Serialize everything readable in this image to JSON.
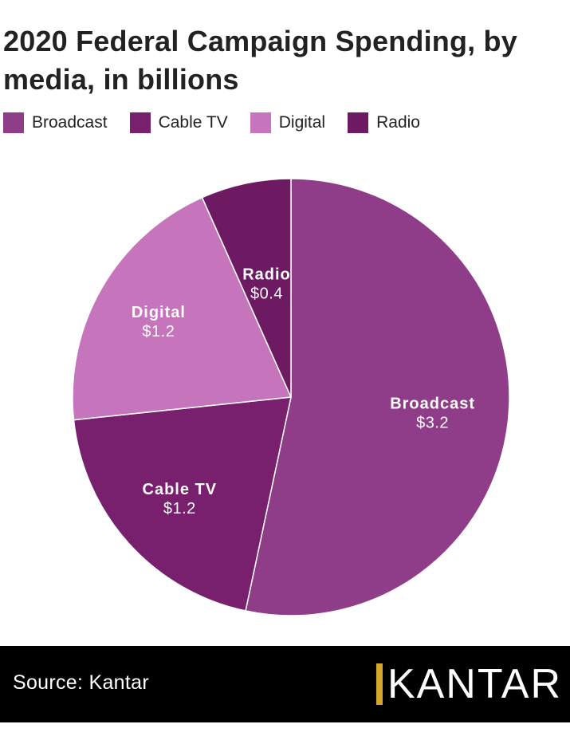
{
  "title": "2020 Federal Campaign Spending, by media, in billions",
  "colors": {
    "broadcast": "#8f3d88",
    "cable_tv": "#781f6e",
    "digital": "#c675bd",
    "radio": "#6e1a62"
  },
  "legend": {
    "items": [
      {
        "label": "Broadcast",
        "color": "#8f3d88"
      },
      {
        "label": "Cable TV",
        "color": "#781f6e"
      },
      {
        "label": "Digital",
        "color": "#c675bd"
      },
      {
        "label": "Radio",
        "color": "#6e1a62"
      }
    ]
  },
  "chart_data": {
    "type": "pie",
    "title": "2020 Federal Campaign Spending, by media, in billions",
    "legend_position": "top",
    "slices": [
      {
        "label": "Broadcast",
        "value": 3.2,
        "value_label": "$3.2",
        "color": "#8f3d88"
      },
      {
        "label": "Cable TV",
        "value": 1.2,
        "value_label": "$1.2",
        "color": "#781f6e"
      },
      {
        "label": "Digital",
        "value": 1.2,
        "value_label": "$1.2",
        "color": "#c675bd"
      },
      {
        "label": "Radio",
        "value": 0.4,
        "value_label": "$0.4",
        "color": "#6e1a62"
      }
    ]
  },
  "footer": {
    "source": "Source: Kantar",
    "logo_text": "KANTAR"
  }
}
